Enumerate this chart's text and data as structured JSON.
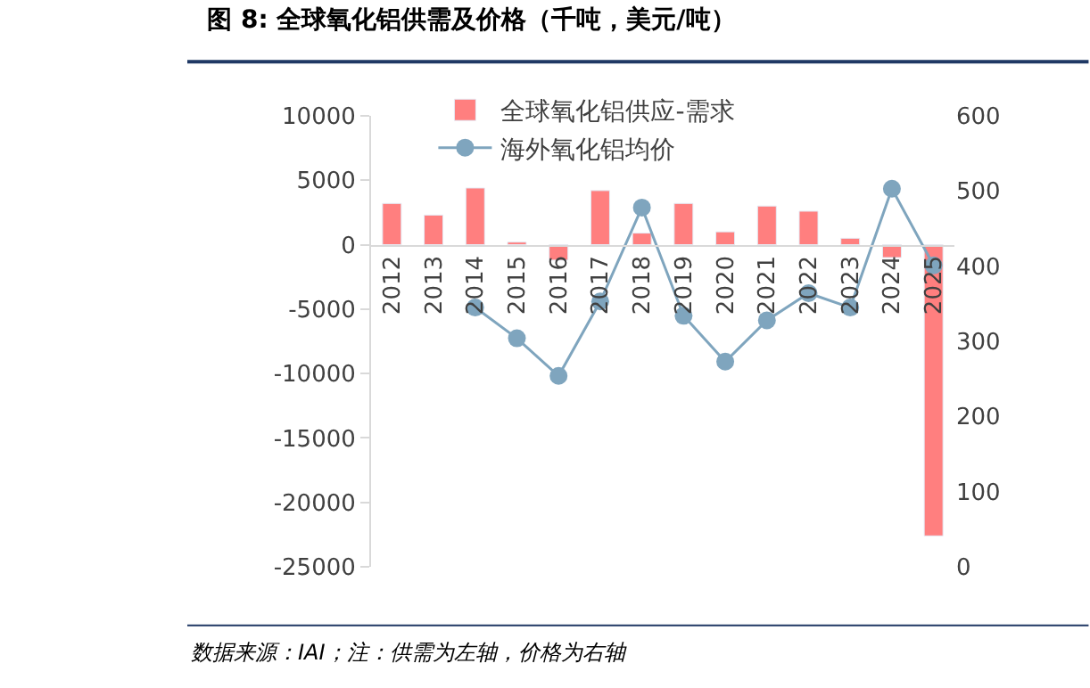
{
  "chart_data": {
    "type": "bar",
    "title": "图 8: 全球氧化铝供需及价格（千吨，美元/吨）",
    "categories": [
      "2012",
      "2013",
      "2014",
      "2015",
      "2016",
      "2017",
      "2018",
      "2019",
      "2020",
      "2021",
      "2022",
      "2023",
      "2024",
      "2025"
    ],
    "series": [
      {
        "name": "全球氧化铝供应-需求",
        "color": "#ff7f7f",
        "values": [
          3200,
          2300,
          4400,
          200,
          -1200,
          4200,
          900,
          3200,
          1000,
          3000,
          2600,
          500,
          -1000,
          -22600
        ]
      },
      {
        "name": "海外氧化铝均价",
        "color": "#7fa5be",
        "type": "line",
        "axis": "y2",
        "marker": "circle",
        "values": [
          null,
          null,
          345,
          304,
          254,
          353,
          478,
          334,
          273,
          328,
          364,
          345,
          503,
          401
        ]
      }
    ],
    "ylim": [
      -25000,
      10000
    ],
    "yticks": [
      -25000,
      -20000,
      -15000,
      -10000,
      -5000,
      0,
      5000,
      10000
    ],
    "y2lim": [
      0,
      600
    ],
    "y2ticks": [
      0,
      100,
      200,
      300,
      400,
      500,
      600
    ],
    "legend": "top",
    "annotations": [
      "数据来源：IAI；注：供需为左轴，价格为右轴"
    ]
  }
}
